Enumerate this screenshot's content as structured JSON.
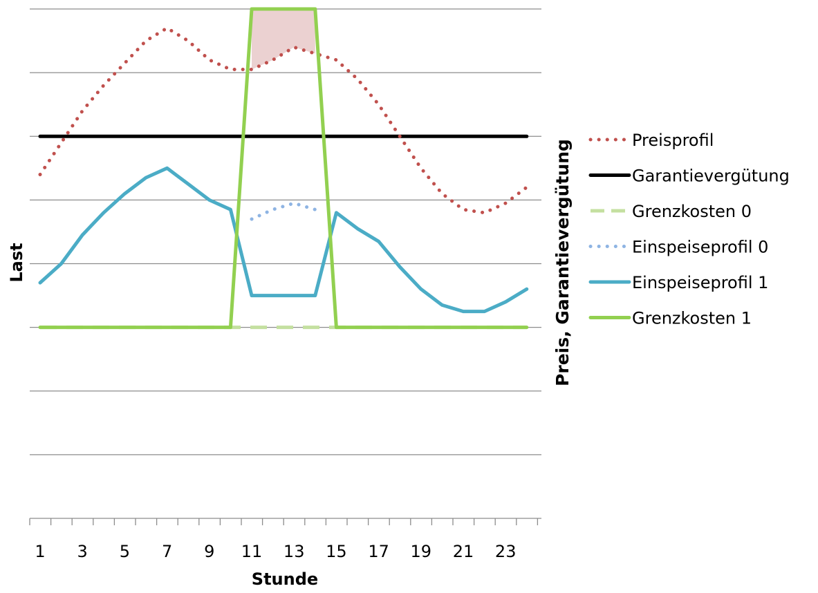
{
  "chart_data": {
    "type": "line",
    "xlabel": "Stunde",
    "ylabel_left": "Last",
    "ylabel_right": "Preis, Garantievergütung",
    "x": [
      1,
      2,
      3,
      4,
      5,
      6,
      7,
      8,
      9,
      10,
      11,
      12,
      13,
      14,
      15,
      16,
      17,
      18,
      19,
      20,
      21,
      22,
      23,
      24
    ],
    "x_tick_labels": [
      "1",
      "3",
      "5",
      "7",
      "9",
      "11",
      "13",
      "15",
      "17",
      "19",
      "21",
      "23"
    ],
    "ylim": [
      0,
      8
    ],
    "yticks_shown": false,
    "grid": "horizontal",
    "legend_position": "right",
    "highlight_region": {
      "x_range": [
        11,
        14
      ],
      "between": [
        "Grenzkosten 1",
        "Preisprofil"
      ],
      "color": "#E7C9C9"
    },
    "series": [
      {
        "name": "Preisprofil",
        "style": "dotted",
        "color": "#C0504D",
        "values": [
          5.4,
          5.9,
          6.4,
          6.8,
          7.15,
          7.5,
          7.7,
          7.5,
          7.2,
          7.05,
          7.05,
          7.2,
          7.4,
          7.3,
          7.2,
          6.9,
          6.5,
          6.0,
          5.5,
          5.1,
          4.85,
          4.8,
          4.95,
          5.2
        ]
      },
      {
        "name": "Garantievergütung",
        "style": "solid",
        "color": "#000000",
        "values": [
          6.0,
          6.0,
          6.0,
          6.0,
          6.0,
          6.0,
          6.0,
          6.0,
          6.0,
          6.0,
          6.0,
          6.0,
          6.0,
          6.0,
          6.0,
          6.0,
          6.0,
          6.0,
          6.0,
          6.0,
          6.0,
          6.0,
          6.0,
          6.0
        ]
      },
      {
        "name": "Grenzkosten 0",
        "style": "dashed",
        "color": "#C4E0A0",
        "values": [
          3.0,
          3.0,
          3.0,
          3.0,
          3.0,
          3.0,
          3.0,
          3.0,
          3.0,
          3.0,
          3.0,
          3.0,
          3.0,
          3.0,
          3.0,
          3.0,
          3.0,
          3.0,
          3.0,
          3.0,
          3.0,
          3.0,
          3.0,
          3.0
        ]
      },
      {
        "name": "Einspeiseprofil 0",
        "style": "dotted",
        "color": "#8EB4E3",
        "values": [
          null,
          null,
          null,
          null,
          null,
          null,
          null,
          null,
          null,
          null,
          4.7,
          4.85,
          4.95,
          4.85,
          null,
          null,
          null,
          null,
          null,
          null,
          null,
          null,
          null,
          null
        ]
      },
      {
        "name": "Einspeiseprofil 1",
        "style": "solid",
        "color": "#4BACC6",
        "values": [
          3.7,
          4.0,
          4.45,
          4.8,
          5.1,
          5.35,
          5.5,
          5.25,
          5.0,
          4.85,
          3.5,
          3.5,
          3.5,
          3.5,
          4.8,
          4.55,
          4.35,
          3.95,
          3.6,
          3.35,
          3.25,
          3.25,
          3.4,
          3.6
        ]
      },
      {
        "name": "Grenzkosten 1",
        "style": "solid",
        "color": "#92D050",
        "values": [
          3.0,
          3.0,
          3.0,
          3.0,
          3.0,
          3.0,
          3.0,
          3.0,
          3.0,
          3.0,
          8.0,
          8.0,
          8.0,
          8.0,
          3.0,
          3.0,
          3.0,
          3.0,
          3.0,
          3.0,
          3.0,
          3.0,
          3.0,
          3.0
        ]
      }
    ]
  }
}
